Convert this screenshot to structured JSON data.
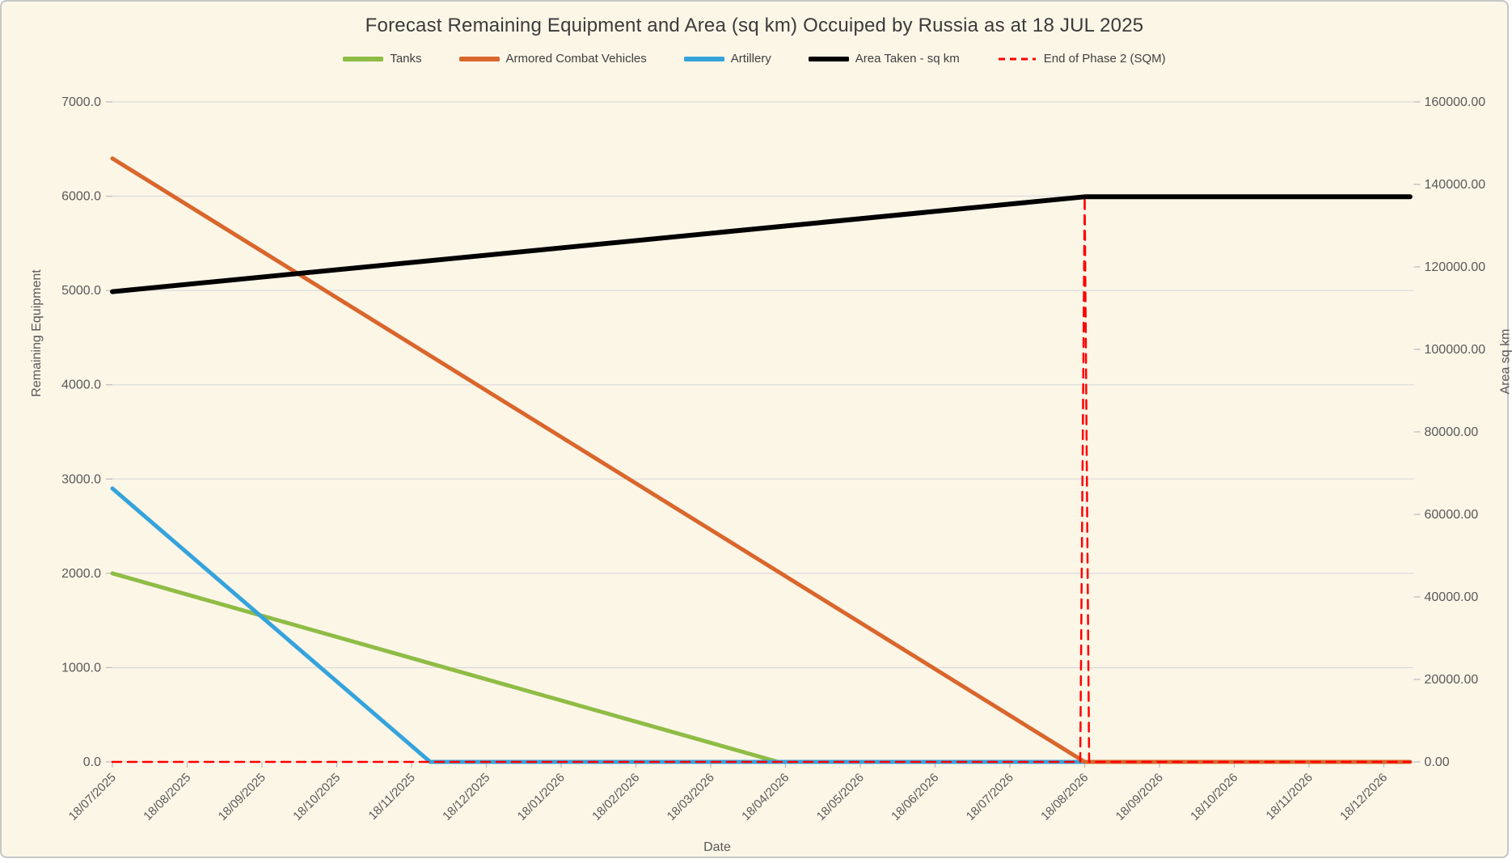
{
  "chart": {
    "title": "Forecast Remaining Equipment and Area (sq km) Occuiped by Russia as at 18 JUL 2025"
  },
  "chart_data": {
    "type": "line",
    "title": "Forecast Remaining Equipment and Area (sq km) Occuiped by Russia as at 18 JUL 2025",
    "xlabel": "Date",
    "ylabel_left": "Remaining Equipment",
    "ylabel_right": "Area sq km",
    "grid": "horizontal",
    "legend_position": "top",
    "background_color": "#FCF6E7",
    "gridline_color": "#DCDCDC",
    "tick_text_color": "#595959",
    "x_tick_labels": [
      "18/07/2025",
      "18/08/2025",
      "18/09/2025",
      "18/10/2025",
      "18/11/2025",
      "18/12/2025",
      "18/01/2026",
      "18/02/2026",
      "18/03/2026",
      "18/04/2026",
      "18/05/2026",
      "18/06/2026",
      "18/07/2026",
      "18/08/2026",
      "18/09/2026",
      "18/10/2026",
      "18/11/2026",
      "18/12/2026"
    ],
    "x_range_index": [
      0,
      17.35
    ],
    "y_left": {
      "min": 0,
      "max": 7000,
      "tick_values": [
        0,
        1000,
        2000,
        3000,
        4000,
        5000,
        6000,
        7000
      ],
      "tick_labels": [
        "0.0",
        "1000.0",
        "2000.0",
        "3000.0",
        "4000.0",
        "5000.0",
        "6000.0",
        "7000.0"
      ]
    },
    "y_right": {
      "min": 0,
      "max": 160000,
      "tick_values": [
        0,
        20000,
        40000,
        60000,
        80000,
        100000,
        120000,
        140000,
        160000
      ],
      "tick_labels": [
        "0.00",
        "20000.00",
        "40000.00",
        "60000.00",
        "80000.00",
        "100000.00",
        "120000.00",
        "140000.00",
        "160000.00"
      ]
    },
    "series": [
      {
        "name": "Tanks",
        "color": "#8FBC45",
        "axis": "left",
        "style": "solid",
        "width": 5,
        "points": [
          [
            0,
            2000
          ],
          [
            8.9,
            0
          ],
          [
            17.35,
            0
          ]
        ],
        "note": "2000 on 18/07/2025, declines linearly to 0 around mid-April 2026, then flat at 0"
      },
      {
        "name": "Artillery",
        "color": "#35A3DC",
        "axis": "left",
        "style": "solid",
        "width": 5,
        "points": [
          [
            0,
            2900
          ],
          [
            4.25,
            0
          ],
          [
            17.35,
            0
          ]
        ],
        "note": "2900 on 18/07/2025, declines linearly to 0 in late November 2025, then flat at 0"
      },
      {
        "name": "Armored Combat Vehicles",
        "color": "#D9662C",
        "axis": "left",
        "style": "solid",
        "width": 5,
        "points": [
          [
            0,
            6400
          ],
          [
            13,
            0
          ],
          [
            17.35,
            0
          ]
        ],
        "note": "6400 on 18/07/2025, declines linearly to 0 on 18/08/2026, then flat at 0"
      },
      {
        "name": "End of Phase 2 (SQM)",
        "color": "#FF0000",
        "axis": "right",
        "style": "dashed",
        "width": 2.5,
        "points": [
          [
            0,
            0
          ],
          [
            12.94,
            0
          ],
          [
            13,
            137000
          ],
          [
            13.06,
            0
          ],
          [
            17.35,
            0
          ]
        ],
        "note": "0 along the whole axis with a vertical spike to ~137000 at 18/08/2026"
      },
      {
        "name": "Area Taken - sq km",
        "color": "#000000",
        "axis": "right",
        "style": "solid",
        "width": 6,
        "points": [
          [
            0,
            114000
          ],
          [
            13,
            137000
          ],
          [
            17.35,
            137000
          ]
        ],
        "note": "~114000 sq km on 18/07/2025 rising linearly to ~137000 on 18/08/2026, then flat"
      }
    ],
    "legend_order": [
      "Tanks",
      "Armored Combat Vehicles",
      "Artillery",
      "Area Taken - sq km",
      "End of Phase 2 (SQM)"
    ]
  }
}
